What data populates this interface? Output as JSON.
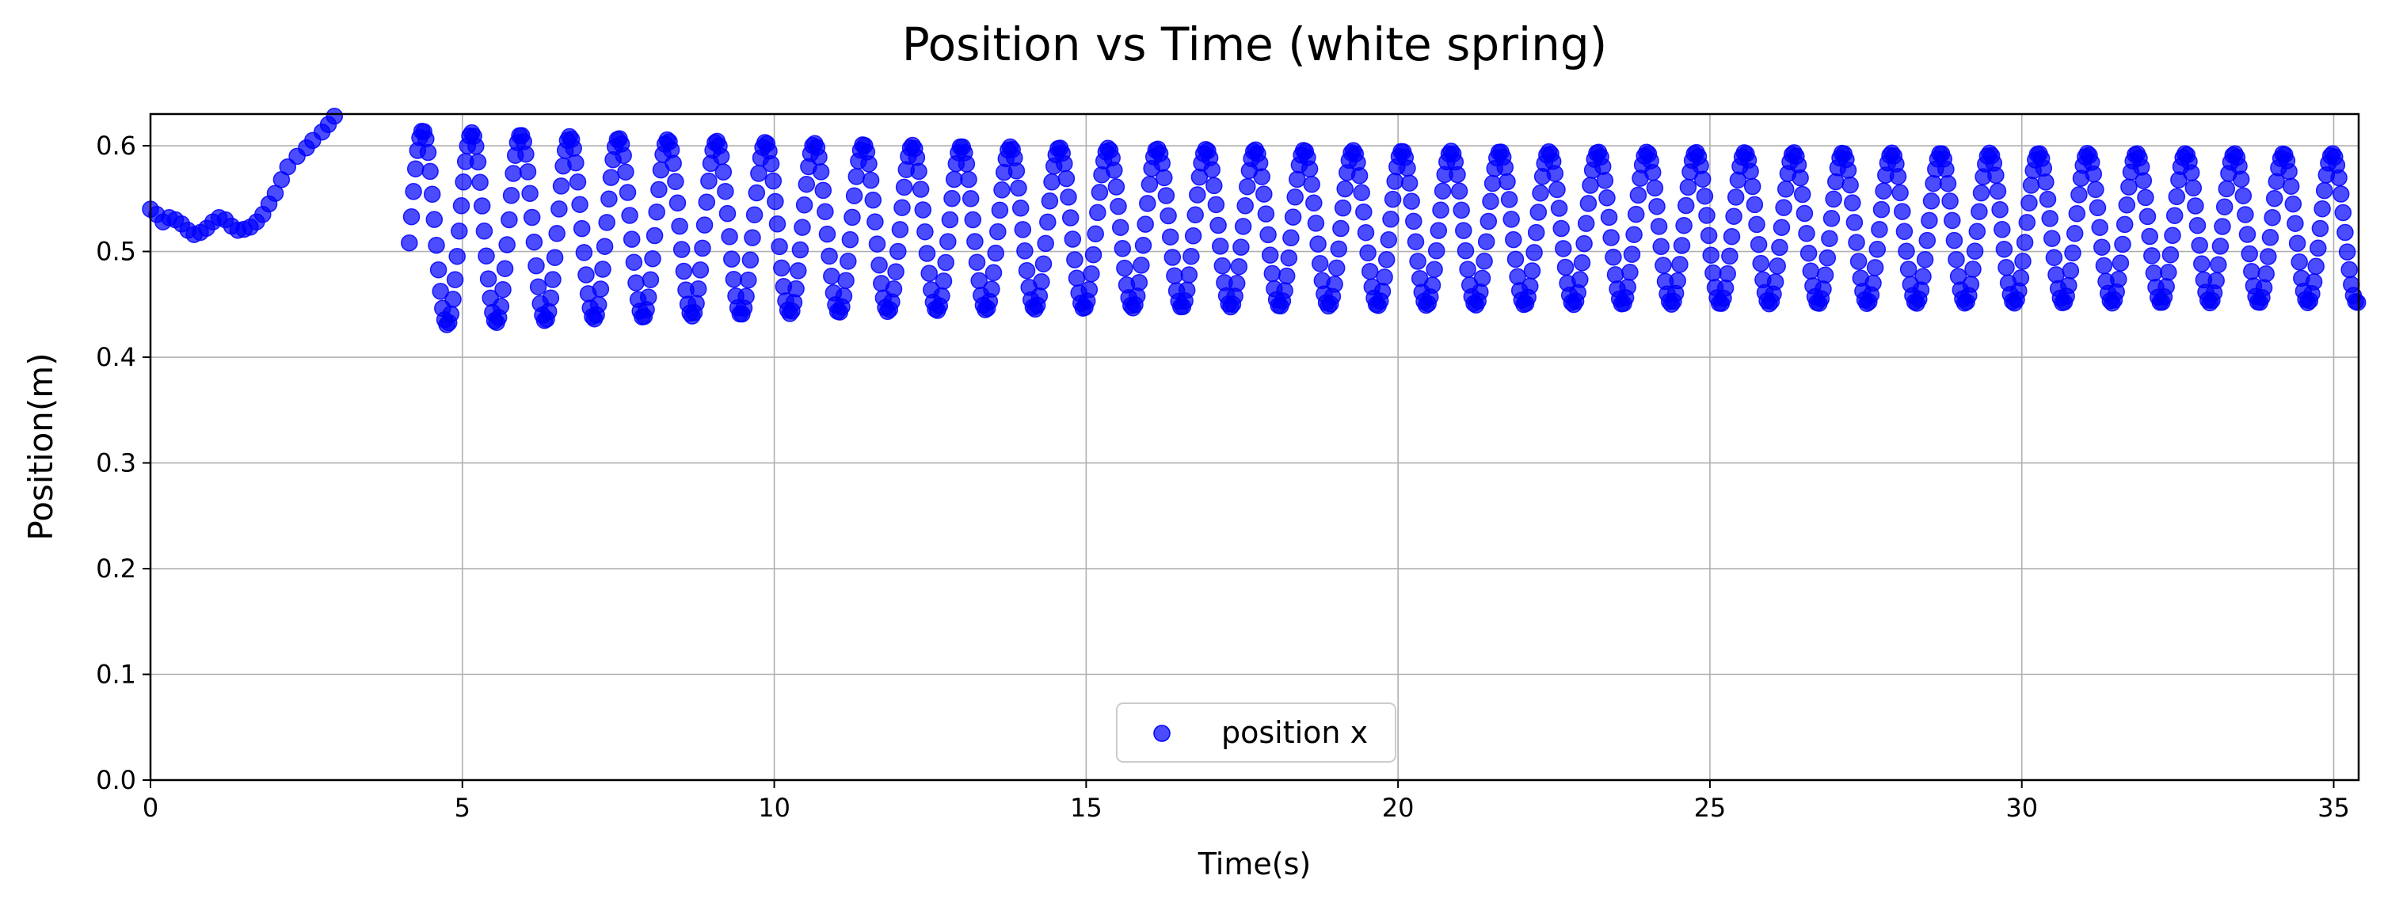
{
  "chart_data": {
    "type": "scatter",
    "title": "Position vs Time (white spring)",
    "xlabel": "Time(s)",
    "ylabel": "Position(m)",
    "xlim": [
      0,
      35.4
    ],
    "ylim": [
      0,
      0.63
    ],
    "xticks": [
      0,
      5,
      10,
      15,
      20,
      25,
      30,
      35
    ],
    "yticks": [
      0.0,
      0.1,
      0.2,
      0.3,
      0.4,
      0.5,
      0.6
    ],
    "xtick_labels": [
      "0",
      "5",
      "10",
      "15",
      "20",
      "25",
      "30",
      "35"
    ],
    "ytick_labels": [
      "0.0",
      "0.1",
      "0.2",
      "0.3",
      "0.4",
      "0.5",
      "0.6"
    ],
    "grid": true,
    "legend": {
      "position": "lower center",
      "entries": [
        "position x"
      ]
    },
    "series": [
      {
        "name": "position x",
        "color": "#0000ff",
        "marker": "circle",
        "alpha": 0.7,
        "x": [
          0.0,
          0.1,
          0.2,
          0.3,
          0.4,
          0.5,
          0.6,
          0.7,
          0.8,
          0.9,
          1.0,
          1.1,
          1.2,
          1.3,
          1.4,
          1.5,
          1.6,
          1.7,
          1.8,
          1.9,
          2.0,
          2.1,
          2.2,
          2.35,
          2.5,
          2.6,
          2.75,
          2.85,
          2.95
        ],
        "y": [
          0.54,
          0.535,
          0.528,
          0.532,
          0.53,
          0.526,
          0.52,
          0.516,
          0.518,
          0.522,
          0.528,
          0.532,
          0.53,
          0.524,
          0.52,
          0.521,
          0.523,
          0.528,
          0.535,
          0.545,
          0.555,
          0.568,
          0.58,
          0.59,
          0.598,
          0.605,
          0.613,
          0.62,
          0.628
        ]
      }
    ],
    "oscillation": {
      "t_start": 4.15,
      "t_end": 35.4,
      "samples_per_second": 30,
      "period_s": 0.785,
      "phase_s": 0.44,
      "center_start": 0.522,
      "center_end": 0.522,
      "amplitude_start": 0.093,
      "amplitude_end": 0.07,
      "amplitude_decay_s": 8.0
    }
  }
}
